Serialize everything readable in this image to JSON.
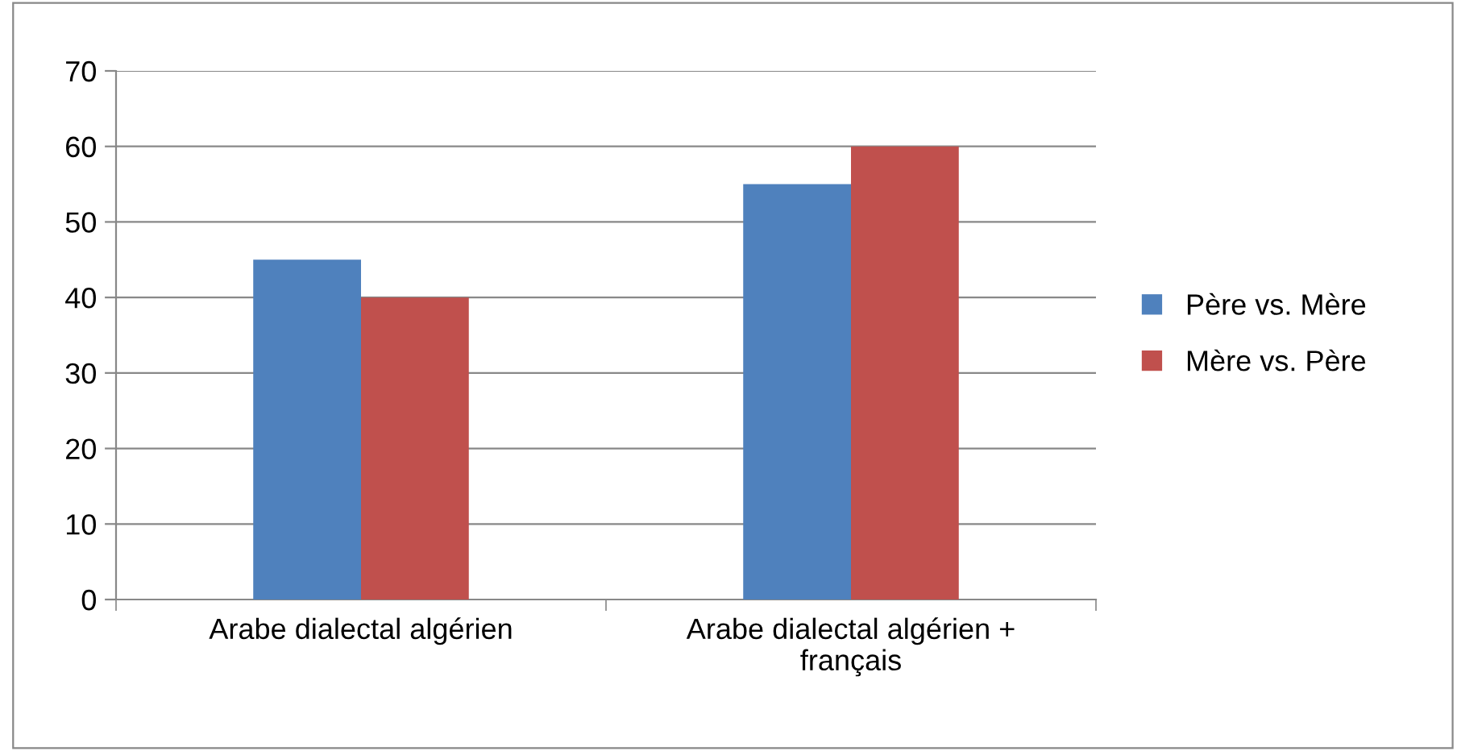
{
  "chart_data": {
    "type": "bar",
    "categories": [
      "Arabe dialectal algérien",
      "Arabe dialectal algérien +\nfrançais"
    ],
    "series": [
      {
        "name": "Père vs. Mère",
        "color": "#4f81bd",
        "values": [
          45,
          55
        ]
      },
      {
        "name": "Mère vs. Père",
        "color": "#c0504d",
        "values": [
          40,
          60
        ]
      }
    ],
    "ylim": [
      0,
      70
    ],
    "yticks": [
      0,
      10,
      20,
      30,
      40,
      50,
      60,
      70
    ],
    "grid": "y",
    "legend": "right"
  }
}
